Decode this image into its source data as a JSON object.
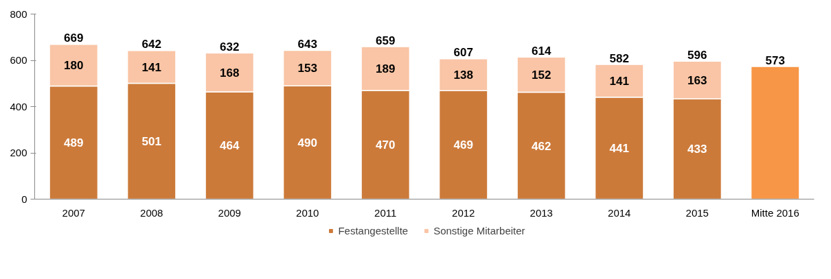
{
  "chart_data": {
    "type": "bar",
    "stacked": true,
    "categories": [
      "2007",
      "2008",
      "2009",
      "2010",
      "2011",
      "2012",
      "2013",
      "2014",
      "2015",
      "Mitte 2016"
    ],
    "series": [
      {
        "name": "Festangestellte",
        "color": "#cc7a3a",
        "colors": [
          "#cc7a3a",
          "#cc7a3a",
          "#cc7a3a",
          "#cc7a3a",
          "#cc7a3a",
          "#cc7a3a",
          "#cc7a3a",
          "#cc7a3a",
          "#cc7a3a",
          "#f79646"
        ],
        "values": [
          489,
          501,
          464,
          490,
          470,
          469,
          462,
          441,
          433,
          573
        ],
        "value_labels": [
          "489",
          "501",
          "464",
          "490",
          "470",
          "469",
          "462",
          "441",
          "433",
          null
        ]
      },
      {
        "name": "Sonstige Mitarbeiter",
        "color": "#f9c5a6",
        "values": [
          180,
          141,
          168,
          153,
          189,
          138,
          152,
          141,
          163,
          null
        ],
        "value_labels": [
          "180",
          "141",
          "168",
          "153",
          "189",
          "138",
          "152",
          "141",
          "163",
          null
        ]
      }
    ],
    "totals": [
      "669",
      "642",
      "632",
      "643",
      "659",
      "607",
      "614",
      "582",
      "596",
      "573"
    ],
    "ylim": [
      0,
      800
    ],
    "yticks": [
      0,
      200,
      400,
      600,
      800
    ],
    "grid": false,
    "legend": "bottom"
  }
}
